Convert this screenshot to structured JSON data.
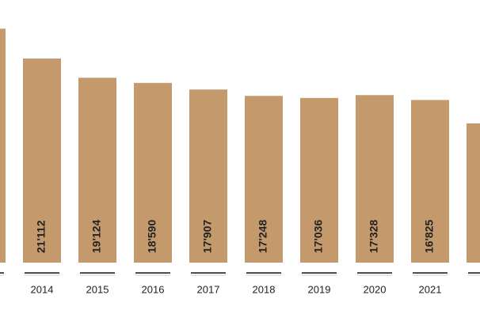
{
  "chart_data": {
    "type": "bar",
    "categories": [
      null,
      "2014",
      "2015",
      "2016",
      "2017",
      "2018",
      "2019",
      "2020",
      "2021",
      null
    ],
    "values": [
      24200,
      21112,
      19124,
      18590,
      17907,
      17248,
      17036,
      17328,
      16825,
      14400
    ],
    "value_labels": [
      null,
      "21'112",
      "19'124",
      "18'590",
      "17'907",
      "17'248",
      "17'036",
      "17'328",
      "16'825",
      null
    ],
    "color": "#c49a6c"
  }
}
